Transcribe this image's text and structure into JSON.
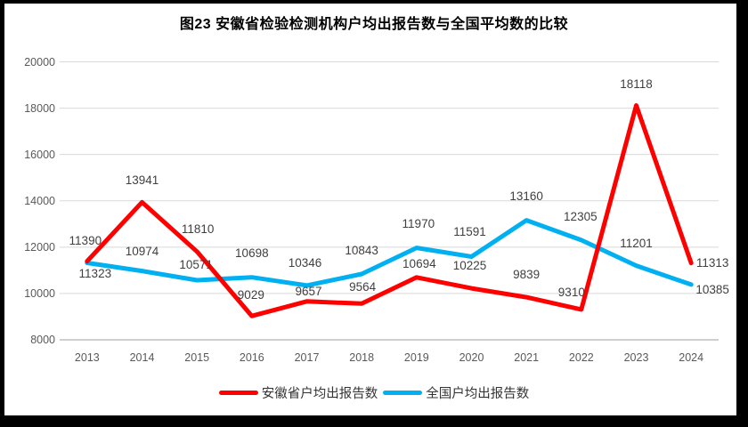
{
  "chart_data": {
    "type": "line",
    "title": "图23 安徽省检验检测机构户均出报告数与全国平均数的比较",
    "categories": [
      "2013",
      "2014",
      "2015",
      "2016",
      "2017",
      "2018",
      "2019",
      "2020",
      "2021",
      "2022",
      "2023",
      "2024"
    ],
    "series": [
      {
        "name": "安徽省户均出报告数",
        "color": "#FF0000",
        "values": [
          11390,
          13941,
          11810,
          9029,
          9657,
          9564,
          10694,
          10225,
          9839,
          9310,
          18118,
          11313
        ],
        "label_offsets": [
          [
            -2,
            -23
          ],
          [
            0,
            -24
          ],
          [
            1,
            -25
          ],
          [
            -1,
            -23
          ],
          [
            2,
            -11
          ],
          [
            1,
            -18
          ],
          [
            3,
            -15
          ],
          [
            -2,
            -25
          ],
          [
            0,
            -25
          ],
          [
            -11,
            -19
          ],
          [
            0,
            -24
          ],
          [
            24,
            0
          ]
        ]
      },
      {
        "name": "全国户均出报告数",
        "color": "#00B0F0",
        "values": [
          11323,
          10974,
          10571,
          10698,
          10346,
          10843,
          11970,
          11591,
          13160,
          12305,
          11201,
          10385
        ],
        "label_offsets": [
          [
            9,
            13
          ],
          [
            0,
            -22
          ],
          [
            -1,
            -17
          ],
          [
            0,
            -27
          ],
          [
            -2,
            -25
          ],
          [
            0,
            -26
          ],
          [
            2,
            -27
          ],
          [
            -2,
            -27
          ],
          [
            0,
            -27
          ],
          [
            -1,
            -26
          ],
          [
            0,
            -25
          ],
          [
            24,
            6
          ]
        ]
      }
    ],
    "ylim": [
      8000,
      20000
    ],
    "ytick_labels": [
      "8000",
      "10000",
      "12000",
      "14000",
      "16000",
      "18000",
      "20000"
    ],
    "grid": true,
    "grid_color": "#D9D9D9",
    "axis_line_color": "#BFBFBF",
    "axis_text_color": "#595959",
    "data_label_color": "#404040",
    "legend_position": "bottom",
    "draw_order": "blue-under-red"
  }
}
